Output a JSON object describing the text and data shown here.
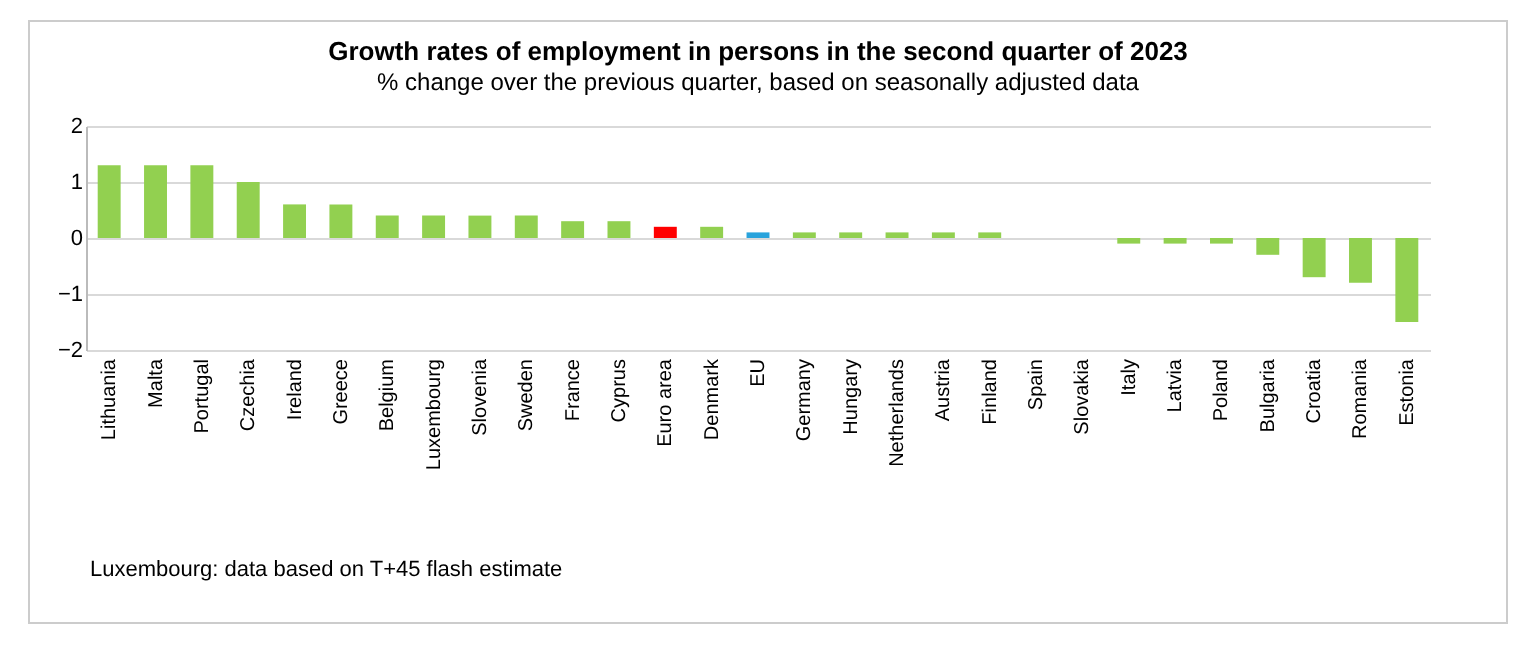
{
  "chart_data": {
    "type": "bar",
    "title": "Growth rates of employment in persons in the second quarter of 2023",
    "subtitle": "% change over the previous quarter, based on seasonally adjusted data",
    "categories": [
      "Lithuania",
      "Malta",
      "Portugal",
      "Czechia",
      "Ireland",
      "Greece",
      "Belgium",
      "Luxembourg",
      "Slovenia",
      "Sweden",
      "France",
      "Cyprus",
      "Euro area",
      "Denmark",
      "EU",
      "Germany",
      "Hungary",
      "Netherlands",
      "Austria",
      "Finland",
      "Spain",
      "Slovakia",
      "Italy",
      "Latvia",
      "Poland",
      "Bulgaria",
      "Croatia",
      "Romania",
      "Estonia"
    ],
    "values": [
      1.3,
      1.3,
      1.3,
      1.0,
      0.6,
      0.6,
      0.4,
      0.4,
      0.4,
      0.4,
      0.3,
      0.3,
      0.2,
      0.2,
      0.1,
      0.1,
      0.1,
      0.1,
      0.1,
      0.1,
      0,
      0,
      -0.1,
      -0.1,
      -0.1,
      -0.3,
      -0.7,
      -0.8,
      -1.5
    ],
    "colors": [
      "#92d050",
      "#92d050",
      "#92d050",
      "#92d050",
      "#92d050",
      "#92d050",
      "#92d050",
      "#92d050",
      "#92d050",
      "#92d050",
      "#92d050",
      "#92d050",
      "#ff0000",
      "#92d050",
      "#29a3dc",
      "#92d050",
      "#92d050",
      "#92d050",
      "#92d050",
      "#92d050",
      "#92d050",
      "#92d050",
      "#92d050",
      "#92d050",
      "#92d050",
      "#92d050",
      "#92d050",
      "#92d050",
      "#92d050"
    ],
    "ylim": [
      -2,
      2
    ],
    "yticks": [
      -2,
      -1,
      0,
      1,
      2
    ],
    "grid": "y",
    "annotations": [
      "Luxembourg: data based on T+45 flash estimate"
    ]
  }
}
